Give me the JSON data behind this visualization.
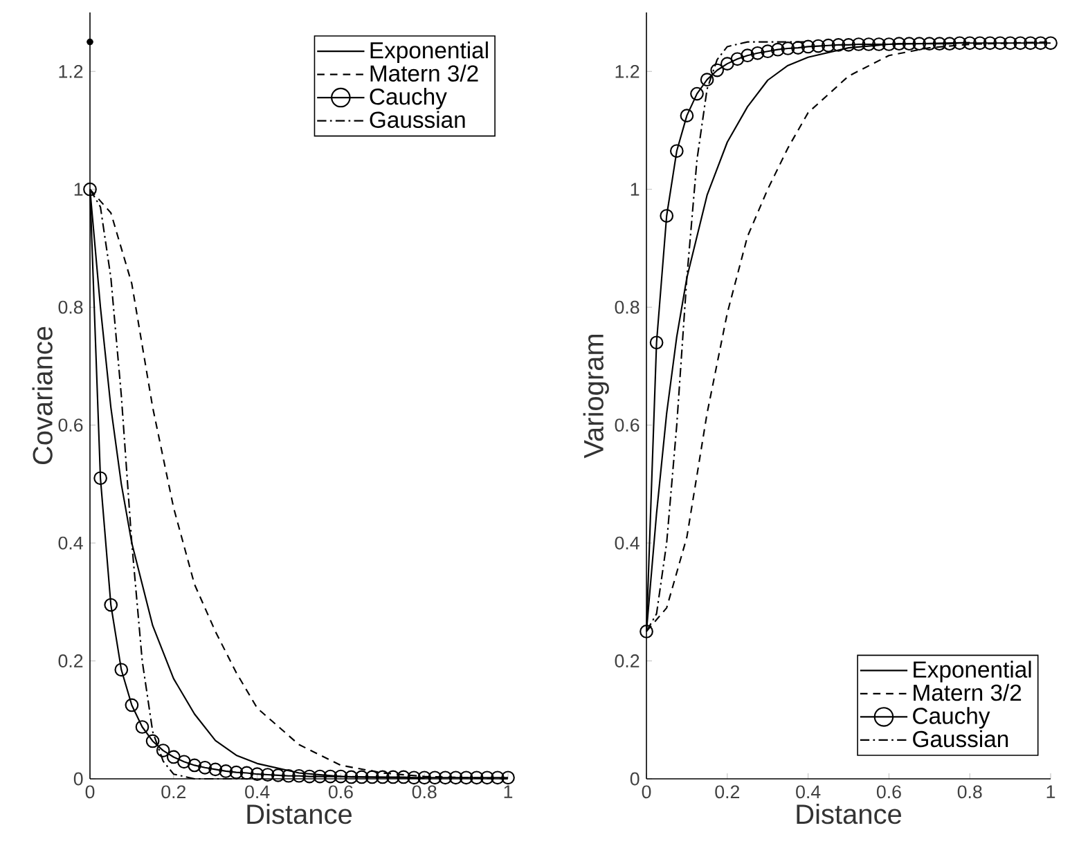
{
  "chart_data": [
    {
      "type": "line",
      "xlabel": "Distance",
      "ylabel": "Covariance",
      "xlim": [
        0,
        1
      ],
      "ylim": [
        0,
        1.3
      ],
      "xticks": [
        0,
        0.2,
        0.4,
        0.6,
        0.8,
        1
      ],
      "yticks": [
        0,
        0.2,
        0.4,
        0.6,
        0.8,
        1,
        1.2
      ],
      "legend": "top right",
      "series": [
        {
          "name": "Exponential",
          "color": "#000000",
          "line_style": "solid",
          "marker": "none",
          "x": [
            0,
            0.025,
            0.05,
            0.075,
            0.1,
            0.15,
            0.2,
            0.25,
            0.3,
            0.35,
            0.4,
            0.5,
            0.6,
            0.8
          ],
          "values": [
            1,
            0.8,
            0.63,
            0.5,
            0.4,
            0.26,
            0.17,
            0.11,
            0.065,
            0.04,
            0.026,
            0.01,
            0.004,
            0.001
          ]
        },
        {
          "name": "Matern 3/2",
          "color": "#000000",
          "line_style": "dashed",
          "marker": "none",
          "x": [
            0,
            0.05,
            0.1,
            0.15,
            0.2,
            0.25,
            0.3,
            0.35,
            0.4,
            0.5,
            0.6,
            0.7,
            0.8,
            1
          ],
          "values": [
            1,
            0.96,
            0.84,
            0.63,
            0.46,
            0.33,
            0.25,
            0.18,
            0.12,
            0.058,
            0.023,
            0.01,
            0.004,
            0
          ]
        },
        {
          "name": "Cauchy",
          "color": "#000000",
          "line_style": "solid",
          "marker": "circle",
          "x": [
            0,
            0.025,
            0.05,
            0.075,
            0.1,
            0.125,
            0.15,
            0.175,
            0.2,
            0.225,
            0.25,
            0.275,
            0.3,
            0.325,
            0.35,
            0.375,
            0.4,
            0.425,
            0.45,
            0.475,
            0.5,
            0.525,
            0.55,
            0.575,
            0.6,
            0.625,
            0.65,
            0.675,
            0.7,
            0.725,
            0.75,
            0.775,
            0.8,
            0.825,
            0.85,
            0.875,
            0.9,
            0.925,
            0.95,
            0.975,
            1
          ],
          "values": [
            1,
            0.51,
            0.295,
            0.185,
            0.125,
            0.088,
            0.064,
            0.048,
            0.037,
            0.029,
            0.023,
            0.019,
            0.016,
            0.013,
            0.011,
            0.01,
            0.008,
            0.007,
            0.006,
            0.005,
            0.005,
            0.004,
            0.004,
            0.004,
            0.004,
            0.003,
            0.003,
            0.003,
            0.003,
            0.003,
            0.003,
            0.002,
            0.002,
            0.002,
            0.002,
            0.002,
            0.002,
            0.002,
            0.002,
            0.002,
            0.002
          ]
        },
        {
          "name": "Gaussian",
          "color": "#000000",
          "line_style": "dashdot",
          "marker": "none",
          "x": [
            0,
            0.025,
            0.05,
            0.075,
            0.1,
            0.125,
            0.15,
            0.175,
            0.2,
            0.25,
            0.4
          ],
          "values": [
            1,
            0.97,
            0.85,
            0.65,
            0.4,
            0.2,
            0.08,
            0.03,
            0.008,
            0,
            0
          ]
        },
        {
          "type": "scatter",
          "color": "#000000",
          "x": [
            0
          ],
          "values": [
            1.25
          ]
        }
      ]
    },
    {
      "type": "line",
      "xlabel": "Distance",
      "ylabel": "Variogram",
      "xlim": [
        0,
        1
      ],
      "ylim": [
        0,
        1.3
      ],
      "xticks": [
        0,
        0.2,
        0.4,
        0.6,
        0.8,
        1
      ],
      "yticks": [
        0,
        0.2,
        0.4,
        0.6,
        0.8,
        1,
        1.2
      ],
      "legend": "bottom right",
      "series": [
        {
          "name": "Exponential",
          "color": "#000000",
          "line_style": "solid",
          "marker": "none",
          "x": [
            0,
            0.025,
            0.05,
            0.075,
            0.1,
            0.15,
            0.2,
            0.25,
            0.3,
            0.35,
            0.4,
            0.5,
            0.6,
            0.8
          ],
          "values": [
            0.25,
            0.45,
            0.62,
            0.75,
            0.85,
            0.99,
            1.08,
            1.14,
            1.185,
            1.21,
            1.224,
            1.24,
            1.246,
            1.249
          ]
        },
        {
          "name": "Matern 3/2",
          "color": "#000000",
          "line_style": "dashed",
          "marker": "none",
          "x": [
            0,
            0.05,
            0.1,
            0.15,
            0.2,
            0.25,
            0.3,
            0.35,
            0.4,
            0.5,
            0.6,
            0.7,
            0.8,
            1
          ],
          "values": [
            0.25,
            0.29,
            0.41,
            0.62,
            0.79,
            0.92,
            1.0,
            1.07,
            1.13,
            1.192,
            1.227,
            1.24,
            1.246,
            1.25
          ]
        },
        {
          "name": "Cauchy",
          "color": "#000000",
          "line_style": "solid",
          "marker": "circle",
          "x": [
            0,
            0.025,
            0.05,
            0.075,
            0.1,
            0.125,
            0.15,
            0.175,
            0.2,
            0.225,
            0.25,
            0.275,
            0.3,
            0.325,
            0.35,
            0.375,
            0.4,
            0.425,
            0.45,
            0.475,
            0.5,
            0.525,
            0.55,
            0.575,
            0.6,
            0.625,
            0.65,
            0.675,
            0.7,
            0.725,
            0.75,
            0.775,
            0.8,
            0.825,
            0.85,
            0.875,
            0.9,
            0.925,
            0.95,
            0.975,
            1
          ],
          "values": [
            0.25,
            0.74,
            0.955,
            1.065,
            1.125,
            1.162,
            1.186,
            1.202,
            1.213,
            1.221,
            1.227,
            1.231,
            1.234,
            1.237,
            1.239,
            1.24,
            1.242,
            1.243,
            1.244,
            1.245,
            1.245,
            1.246,
            1.246,
            1.246,
            1.246,
            1.247,
            1.247,
            1.247,
            1.247,
            1.247,
            1.247,
            1.248,
            1.248,
            1.248,
            1.248,
            1.248,
            1.248,
            1.248,
            1.248,
            1.248,
            1.248
          ]
        },
        {
          "name": "Gaussian",
          "color": "#000000",
          "line_style": "dashdot",
          "marker": "none",
          "x": [
            0,
            0.025,
            0.05,
            0.075,
            0.1,
            0.125,
            0.15,
            0.175,
            0.2,
            0.25,
            0.4
          ],
          "values": [
            0.25,
            0.28,
            0.4,
            0.6,
            0.85,
            1.05,
            1.17,
            1.22,
            1.242,
            1.25,
            1.25
          ]
        }
      ]
    }
  ]
}
